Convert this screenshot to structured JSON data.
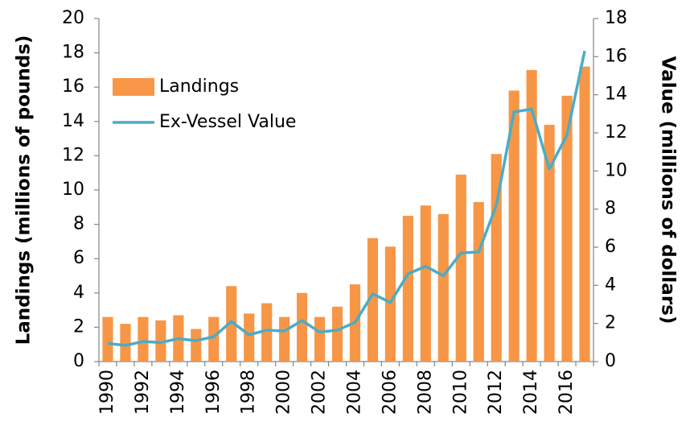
{
  "chart_data": {
    "type": "combo",
    "categories": [
      "1990",
      null,
      "1992",
      null,
      "1994",
      null,
      "1996",
      null,
      "1998",
      null,
      "2000",
      null,
      "2002",
      null,
      "2004",
      null,
      "2006",
      null,
      "2008",
      null,
      "2010",
      null,
      "2012",
      null,
      "2014",
      null,
      "2016",
      null
    ],
    "series": [
      {
        "name": "Landings",
        "type": "bar",
        "color": "#f79646",
        "axis": "y",
        "values": [
          2.6,
          2.2,
          2.6,
          2.4,
          2.7,
          1.9,
          2.6,
          4.4,
          2.8,
          3.4,
          2.6,
          4.0,
          2.6,
          3.2,
          4.5,
          7.2,
          6.7,
          8.5,
          9.1,
          8.6,
          10.9,
          9.3,
          12.1,
          15.8,
          17.0,
          13.8,
          15.5,
          17.2
        ]
      },
      {
        "name": "Ex-Vessel Value",
        "type": "line",
        "color": "#4bacc6",
        "axis": "y2",
        "values": [
          0.95,
          0.85,
          1.05,
          1.0,
          1.2,
          1.1,
          1.3,
          2.1,
          1.4,
          1.65,
          1.6,
          2.15,
          1.55,
          1.65,
          2.05,
          3.55,
          3.1,
          4.6,
          5.0,
          4.5,
          5.7,
          5.75,
          8.2,
          13.1,
          13.25,
          10.1,
          11.9,
          16.3
        ]
      }
    ],
    "ylabel": "Landings (millions of pounds)",
    "y2label": "Value (millions of dollars)",
    "ylim": [
      0,
      20
    ],
    "yticks": [
      0,
      2,
      4,
      6,
      8,
      10,
      12,
      14,
      16,
      18,
      20
    ],
    "y2lim": [
      0,
      18
    ],
    "y2ticks": [
      0,
      2,
      4,
      6,
      8,
      10,
      12,
      14,
      16,
      18
    ],
    "legend": "upper left",
    "grid": false
  }
}
